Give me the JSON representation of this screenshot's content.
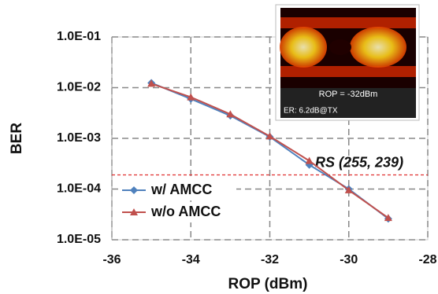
{
  "chart_data": {
    "type": "line",
    "x_label": "ROP (dBm)",
    "y_label": "BER",
    "log_y": true,
    "grid": true,
    "xlim": [
      -36,
      -28
    ],
    "xticks": [
      -36,
      -34,
      -32,
      -30,
      -28
    ],
    "ylim": [
      1e-05,
      0.1
    ],
    "yticks": [
      {
        "value": 0.1,
        "label": "1.0E-01"
      },
      {
        "value": 0.01,
        "label": "1.0E-02"
      },
      {
        "value": 0.001,
        "label": "1.0E-03"
      },
      {
        "value": 0.0001,
        "label": "1.0E-04"
      },
      {
        "value": 1e-05,
        "label": "1.0E-05"
      }
    ],
    "x": [
      -35,
      -34,
      -33,
      -32,
      -31,
      -30,
      -29
    ],
    "series": [
      {
        "name": "w/ AMCC",
        "color": "#4f81bd",
        "marker": "diamond",
        "values": [
          0.0124,
          0.006,
          0.0028,
          0.00107,
          0.0003,
          0.0001,
          2.6e-05
        ]
      },
      {
        "name": "w/o AMCC",
        "color": "#c0504d",
        "marker": "triangle",
        "values": [
          0.012,
          0.0065,
          0.003,
          0.0011,
          0.00036,
          9.5e-05,
          2.7e-05
        ]
      }
    ],
    "threshold": {
      "value": 0.00019,
      "label": "RS (255, 239)",
      "color": "#e03030"
    },
    "legend": "lower-left",
    "inset": {
      "label": "ROP = -32dBm",
      "note": "ER: 6.2dB@TX"
    }
  }
}
